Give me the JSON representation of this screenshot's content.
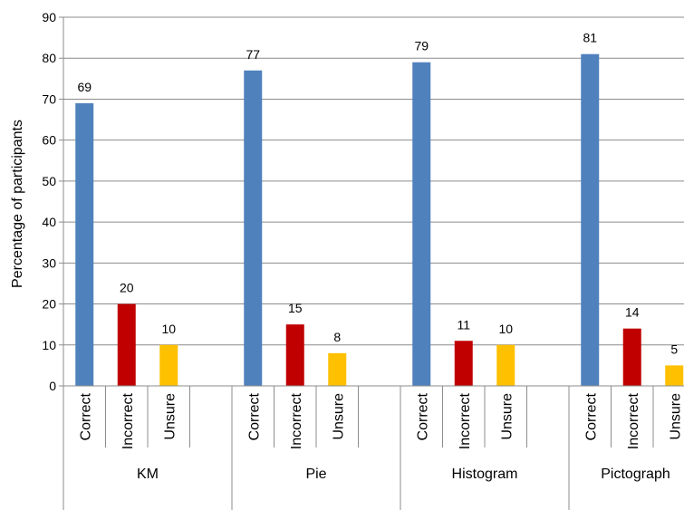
{
  "chart_data": {
    "type": "bar",
    "ylabel": "Percentage of participants",
    "ylim": [
      0,
      90
    ],
    "ytick_step": 10,
    "grid": true,
    "groups": [
      {
        "name": "KM",
        "bars": [
          {
            "label": "Correct",
            "value": 69,
            "color": "#4F81BD"
          },
          {
            "label": "Incorrect",
            "value": 20,
            "color": "#C00000"
          },
          {
            "label": "Unsure",
            "value": 10,
            "color": "#FFC000"
          }
        ]
      },
      {
        "name": "Pie",
        "bars": [
          {
            "label": "Correct",
            "value": 77,
            "color": "#4F81BD"
          },
          {
            "label": "Incorrect",
            "value": 15,
            "color": "#C00000"
          },
          {
            "label": "Unsure",
            "value": 8,
            "color": "#FFC000"
          }
        ]
      },
      {
        "name": "Histogram",
        "bars": [
          {
            "label": "Correct",
            "value": 79,
            "color": "#4F81BD"
          },
          {
            "label": "Incorrect",
            "value": 11,
            "color": "#C00000"
          },
          {
            "label": "Unsure",
            "value": 10,
            "color": "#FFC000"
          }
        ]
      },
      {
        "name": "Pictograph",
        "bars": [
          {
            "label": "Correct",
            "value": 81,
            "color": "#4F81BD"
          },
          {
            "label": "Incorrect",
            "value": 14,
            "color": "#C00000"
          },
          {
            "label": "Unsure",
            "value": 5,
            "color": "#FFC000"
          }
        ]
      }
    ]
  }
}
